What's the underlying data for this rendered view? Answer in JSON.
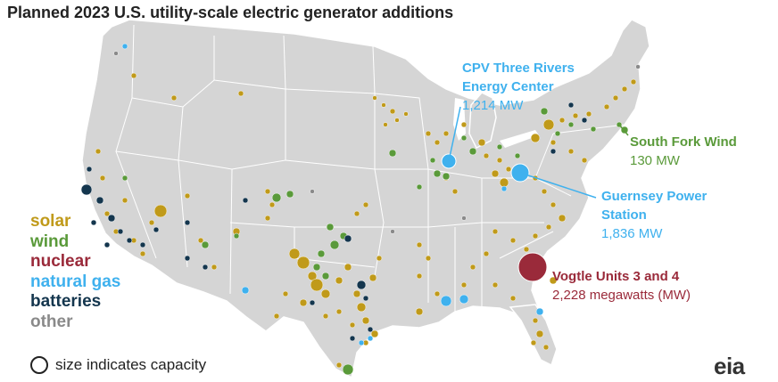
{
  "title": "Planned 2023 U.S. utility-scale electric generator additions",
  "legend": {
    "items": [
      {
        "key": "solar",
        "label": "solar",
        "color": "#c09a1a"
      },
      {
        "key": "wind",
        "label": "wind",
        "color": "#5a9a3a"
      },
      {
        "key": "nuclear",
        "label": "nuclear",
        "color": "#9a2a3a"
      },
      {
        "key": "natural_gas",
        "label": "natural gas",
        "color": "#3fb1ee"
      },
      {
        "key": "batteries",
        "label": "batteries",
        "color": "#14364e"
      },
      {
        "key": "other",
        "label": "other",
        "color": "#8a8a8a"
      }
    ],
    "size_note": "size indicates capacity"
  },
  "callouts": {
    "cpv": {
      "name_line1": "CPV Three Rivers",
      "name_line2": "Energy Center",
      "capacity": "1,214 MW",
      "color": "#3fb1ee"
    },
    "south_fork": {
      "name": "South Fork Wind",
      "capacity": "130 MW",
      "color": "#5a9a3a"
    },
    "guernsey": {
      "name_line1": "Guernsey Power",
      "name_line2": "Station",
      "capacity": "1,836 MW",
      "color": "#3fb1ee"
    },
    "vogtle": {
      "name": "Vogtle Units 3 and 4",
      "capacity": "2,228 megawatts (MW)",
      "color": "#9a2a3a"
    }
  },
  "logo": "eia"
}
